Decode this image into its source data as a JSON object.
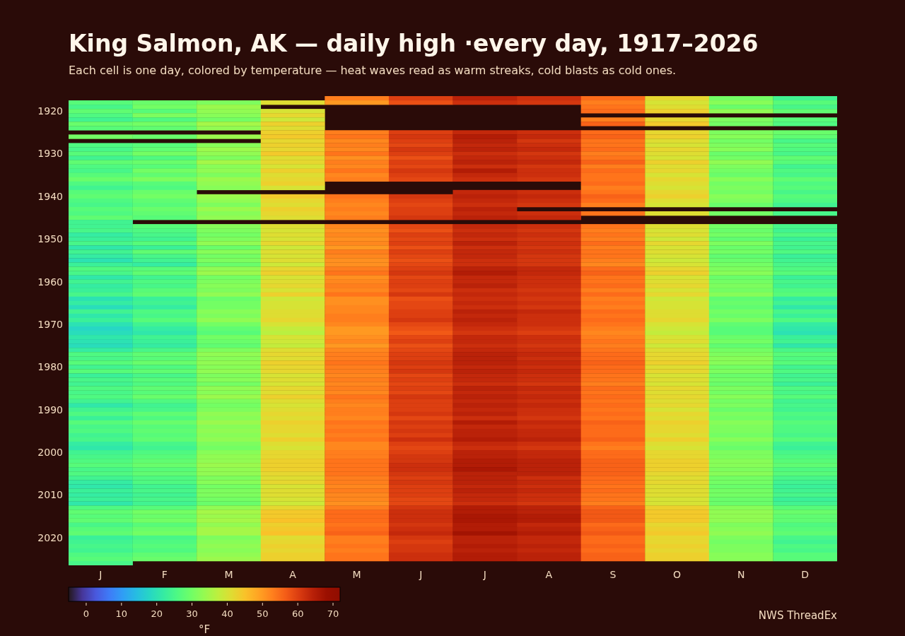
{
  "chart_data": {
    "type": "heatmap",
    "title": "King Salmon, AK — daily high ·every day, 1917–2026",
    "subtitle": "Each cell is one day, colored by temperature — heat waves read as warm streaks, cold blasts as cold ones.",
    "categories": [
      "J",
      "F",
      "M",
      "A",
      "M",
      "J",
      "J",
      "A",
      "S",
      "O",
      "N",
      "D"
    ],
    "y_categories": [
      null,
      null,
      null,
      "1920",
      null,
      null,
      null,
      null,
      null,
      null,
      null,
      null,
      null,
      "1930",
      null,
      null,
      null,
      null,
      null,
      null,
      null,
      null,
      null,
      "1940",
      null,
      null,
      null,
      null,
      null,
      null,
      null,
      null,
      null,
      "1950",
      null,
      null,
      null,
      null,
      null,
      null,
      null,
      null,
      null,
      "1960",
      null,
      null,
      null,
      null,
      null,
      null,
      null,
      null,
      null,
      "1970",
      null,
      null,
      null,
      null,
      null,
      null,
      null,
      null,
      null,
      "1980",
      null,
      null,
      null,
      null,
      null,
      null,
      null,
      null,
      null,
      "1990",
      null,
      null,
      null,
      null,
      null,
      null,
      null,
      null,
      null,
      "2000",
      null,
      null,
      null,
      null,
      null,
      null,
      null,
      null,
      null,
      "2010",
      null,
      null,
      null,
      null,
      null,
      null,
      null,
      null,
      null,
      "2020",
      null,
      null,
      null,
      null,
      null,
      null
    ],
    "cells": [
      [
        null,
        null,
        null,
        null,
        53,
        60,
        64,
        62,
        55,
        42,
        30,
        24
      ],
      [
        27,
        29,
        31,
        41,
        50,
        58,
        62,
        61,
        53,
        40,
        32,
        27
      ],
      [
        25,
        30,
        34,
        null,
        null,
        null,
        null,
        null,
        54,
        41,
        29,
        25
      ],
      [
        28,
        27,
        33,
        40,
        null,
        null,
        null,
        null,
        55,
        43,
        33,
        28
      ],
      [
        26,
        31,
        32,
        42,
        null,
        null,
        null,
        null,
        null,
        null,
        null,
        null
      ],
      [
        24,
        26,
        30,
        39,
        null,
        null,
        null,
        null,
        53,
        42,
        31,
        27
      ],
      [
        29,
        30,
        35,
        43,
        null,
        null,
        null,
        null,
        56,
        44,
        30,
        26
      ],
      [
        27,
        28,
        33,
        41,
        null,
        null,
        null,
        null,
        null,
        null,
        null,
        null
      ],
      [
        null,
        null,
        null,
        43,
        53,
        60,
        63,
        62,
        55,
        42,
        31,
        29
      ],
      [
        30,
        29,
        34,
        44,
        54,
        61,
        65,
        63,
        56,
        43,
        32,
        28
      ],
      [
        null,
        null,
        null,
        42,
        52,
        60,
        64,
        61,
        54,
        41,
        30,
        25
      ],
      [
        26,
        27,
        32,
        43,
        53,
        59,
        63,
        62,
        54,
        40,
        31,
        27
      ],
      [
        25,
        28,
        34,
        42,
        52,
        61,
        64,
        63,
        55,
        42,
        32,
        26
      ],
      [
        27,
        30,
        33,
        44,
        54,
        60,
        62,
        61,
        53,
        41,
        29,
        25
      ],
      [
        24,
        26,
        31,
        41,
        51,
        58,
        63,
        62,
        54,
        40,
        30,
        28
      ],
      [
        28,
        29,
        35,
        42,
        53,
        60,
        64,
        63,
        56,
        43,
        33,
        27
      ],
      [
        26,
        27,
        32,
        40,
        52,
        59,
        62,
        61,
        53,
        41,
        31,
        24
      ],
      [
        25,
        30,
        33,
        43,
        54,
        61,
        65,
        62,
        55,
        42,
        30,
        26
      ],
      [
        27,
        28,
        31,
        41,
        52,
        60,
        63,
        62,
        54,
        40,
        29,
        25
      ],
      [
        29,
        31,
        34,
        42,
        53,
        59,
        62,
        61,
        54,
        42,
        32,
        28
      ],
      [
        26,
        27,
        33,
        43,
        null,
        null,
        null,
        null,
        55,
        41,
        30,
        26
      ],
      [
        24,
        26,
        32,
        40,
        null,
        null,
        null,
        null,
        53,
        40,
        31,
        27
      ],
      [
        27,
        29,
        null,
        null,
        null,
        null,
        63,
        62,
        54,
        42,
        30,
        25
      ],
      [
        28,
        30,
        34,
        44,
        54,
        61,
        64,
        63,
        56,
        43,
        32,
        27
      ],
      [
        26,
        28,
        33,
        42,
        53,
        60,
        63,
        62,
        55,
        41,
        31,
        26
      ],
      [
        25,
        27,
        31,
        41,
        52,
        59,
        62,
        61,
        53,
        40,
        29,
        24
      ],
      [
        27,
        29,
        34,
        43,
        53,
        60,
        64,
        null,
        null,
        null,
        null,
        null
      ],
      [
        26,
        28,
        32,
        42,
        52,
        60,
        63,
        62,
        54,
        41,
        30,
        25
      ],
      [
        28,
        27,
        33,
        41,
        53,
        61,
        64,
        63,
        null,
        null,
        null,
        null
      ],
      [
        24,
        null,
        null,
        null,
        null,
        null,
        null,
        null,
        null,
        null,
        null,
        null
      ],
      [
        24,
        27,
        32,
        41,
        52,
        59,
        63,
        62,
        54,
        41,
        30,
        25
      ],
      [
        25,
        26,
        31,
        40,
        51,
        58,
        62,
        61,
        53,
        40,
        29,
        24
      ],
      [
        22,
        25,
        30,
        41,
        52,
        60,
        63,
        62,
        54,
        41,
        30,
        26
      ],
      [
        23,
        24,
        31,
        40,
        51,
        59,
        62,
        61,
        53,
        39,
        28,
        23
      ],
      [
        25,
        27,
        33,
        42,
        52,
        60,
        64,
        62,
        55,
        42,
        31,
        25
      ],
      [
        21,
        23,
        29,
        39,
        50,
        58,
        62,
        61,
        53,
        40,
        29,
        24
      ],
      [
        24,
        28,
        32,
        41,
        53,
        60,
        63,
        62,
        54,
        41,
        30,
        26
      ],
      [
        22,
        25,
        30,
        40,
        52,
        59,
        63,
        61,
        54,
        40,
        28,
        23
      ],
      [
        20,
        24,
        31,
        41,
        51,
        58,
        62,
        61,
        53,
        39,
        29,
        24
      ],
      [
        23,
        22,
        29,
        39,
        51,
        59,
        62,
        61,
        52,
        40,
        30,
        25
      ],
      [
        26,
        27,
        33,
        42,
        53,
        60,
        64,
        63,
        55,
        42,
        31,
        26
      ],
      [
        25,
        28,
        34,
        43,
        54,
        61,
        65,
        63,
        56,
        43,
        32,
        27
      ],
      [
        21,
        24,
        30,
        40,
        51,
        59,
        63,
        62,
        54,
        40,
        29,
        23
      ],
      [
        24,
        26,
        31,
        41,
        52,
        60,
        63,
        62,
        54,
        41,
        30,
        25
      ],
      [
        22,
        25,
        32,
        42,
        53,
        60,
        64,
        62,
        55,
        42,
        31,
        24
      ],
      [
        23,
        27,
        31,
        40,
        52,
        59,
        62,
        61,
        53,
        40,
        30,
        26
      ],
      [
        25,
        28,
        33,
        43,
        54,
        61,
        63,
        62,
        55,
        42,
        32,
        27
      ],
      [
        20,
        23,
        29,
        39,
        51,
        58,
        62,
        61,
        53,
        39,
        28,
        22
      ],
      [
        22,
        24,
        30,
        40,
        51,
        59,
        63,
        62,
        54,
        40,
        29,
        24
      ],
      [
        19,
        22,
        30,
        40,
        52,
        59,
        62,
        61,
        53,
        40,
        28,
        21
      ],
      [
        24,
        26,
        32,
        41,
        52,
        60,
        64,
        63,
        55,
        41,
        30,
        25
      ],
      [
        21,
        25,
        31,
        41,
        53,
        60,
        63,
        62,
        54,
        41,
        29,
        23
      ],
      [
        23,
        27,
        33,
        42,
        53,
        61,
        64,
        62,
        55,
        42,
        31,
        26
      ],
      [
        20,
        24,
        30,
        40,
        52,
        59,
        63,
        62,
        54,
        40,
        28,
        22
      ],
      [
        18,
        22,
        28,
        38,
        50,
        58,
        62,
        61,
        53,
        39,
        27,
        21
      ],
      [
        19,
        21,
        27,
        37,
        50,
        57,
        61,
        60,
        52,
        38,
        27,
        20
      ],
      [
        21,
        24,
        30,
        40,
        51,
        59,
        63,
        62,
        53,
        40,
        29,
        23
      ],
      [
        20,
        23,
        29,
        39,
        52,
        60,
        63,
        62,
        54,
        41,
        30,
        24
      ],
      [
        19,
        22,
        28,
        38,
        50,
        58,
        62,
        61,
        53,
        39,
        28,
        21
      ],
      [
        22,
        25,
        31,
        41,
        52,
        59,
        63,
        62,
        54,
        41,
        30,
        25
      ],
      [
        26,
        28,
        33,
        42,
        53,
        60,
        64,
        63,
        55,
        42,
        31,
        27
      ],
      [
        25,
        27,
        32,
        41,
        53,
        60,
        64,
        62,
        55,
        42,
        32,
        26
      ],
      [
        27,
        29,
        33,
        43,
        54,
        61,
        64,
        63,
        56,
        43,
        32,
        27
      ],
      [
        24,
        26,
        32,
        42,
        53,
        60,
        63,
        62,
        55,
        41,
        30,
        24
      ],
      [
        27,
        28,
        33,
        42,
        53,
        61,
        64,
        63,
        55,
        42,
        31,
        26
      ],
      [
        23,
        25,
        31,
        40,
        52,
        59,
        63,
        62,
        54,
        40,
        29,
        24
      ],
      [
        25,
        27,
        32,
        41,
        53,
        60,
        63,
        62,
        54,
        41,
        30,
        25
      ],
      [
        24,
        26,
        30,
        40,
        52,
        59,
        62,
        61,
        53,
        40,
        29,
        23
      ],
      [
        26,
        28,
        33,
        42,
        53,
        60,
        64,
        63,
        55,
        42,
        31,
        26
      ],
      [
        25,
        27,
        32,
        41,
        52,
        59,
        63,
        62,
        54,
        41,
        30,
        25
      ],
      [
        26,
        29,
        34,
        43,
        54,
        61,
        64,
        63,
        55,
        42,
        32,
        27
      ],
      [
        24,
        26,
        31,
        41,
        53,
        60,
        63,
        62,
        54,
        41,
        30,
        24
      ],
      [
        21,
        24,
        30,
        40,
        52,
        60,
        64,
        63,
        55,
        42,
        31,
        25
      ],
      [
        24,
        25,
        31,
        41,
        53,
        60,
        63,
        62,
        54,
        40,
        29,
        24
      ],
      [
        26,
        28,
        33,
        42,
        53,
        61,
        64,
        62,
        55,
        42,
        31,
        26
      ],
      [
        23,
        26,
        32,
        41,
        52,
        59,
        62,
        61,
        54,
        41,
        30,
        25
      ],
      [
        27,
        29,
        34,
        43,
        54,
        61,
        65,
        63,
        56,
        43,
        32,
        27
      ],
      [
        25,
        27,
        32,
        42,
        53,
        60,
        63,
        62,
        55,
        42,
        31,
        26
      ],
      [
        26,
        28,
        33,
        42,
        54,
        61,
        64,
        63,
        55,
        42,
        31,
        26
      ],
      [
        24,
        27,
        32,
        41,
        53,
        60,
        64,
        63,
        55,
        41,
        30,
        25
      ],
      [
        25,
        28,
        33,
        43,
        54,
        62,
        65,
        64,
        56,
        43,
        32,
        27
      ],
      [
        22,
        25,
        31,
        41,
        52,
        60,
        63,
        62,
        54,
        41,
        30,
        24
      ],
      [
        21,
        24,
        30,
        40,
        52,
        59,
        62,
        61,
        53,
        40,
        29,
        23
      ],
      [
        24,
        26,
        32,
        42,
        53,
        60,
        64,
        63,
        55,
        42,
        31,
        25
      ],
      [
        25,
        27,
        33,
        42,
        53,
        61,
        64,
        63,
        55,
        42,
        31,
        26
      ],
      [
        26,
        28,
        33,
        43,
        54,
        61,
        65,
        64,
        56,
        43,
        32,
        27
      ],
      [
        27,
        29,
        34,
        43,
        54,
        62,
        65,
        64,
        56,
        43,
        32,
        28
      ],
      [
        25,
        27,
        33,
        43,
        54,
        62,
        66,
        64,
        56,
        43,
        31,
        26
      ],
      [
        26,
        28,
        33,
        42,
        54,
        61,
        64,
        64,
        56,
        42,
        32,
        27
      ],
      [
        24,
        26,
        31,
        41,
        53,
        60,
        64,
        62,
        55,
        41,
        30,
        25
      ],
      [
        22,
        26,
        32,
        42,
        53,
        61,
        64,
        63,
        55,
        42,
        30,
        24
      ],
      [
        21,
        24,
        30,
        40,
        52,
        60,
        63,
        62,
        54,
        41,
        29,
        23
      ],
      [
        23,
        25,
        31,
        41,
        53,
        60,
        64,
        63,
        55,
        41,
        30,
        24
      ],
      [
        22,
        24,
        31,
        41,
        52,
        60,
        63,
        62,
        54,
        41,
        30,
        25
      ],
      [
        23,
        25,
        30,
        40,
        52,
        59,
        63,
        62,
        54,
        40,
        29,
        23
      ],
      [
        21,
        24,
        29,
        39,
        51,
        59,
        62,
        61,
        53,
        40,
        29,
        24
      ],
      [
        26,
        27,
        33,
        42,
        53,
        61,
        65,
        64,
        56,
        43,
        32,
        27
      ],
      [
        28,
        30,
        35,
        44,
        55,
        62,
        65,
        64,
        57,
        44,
        33,
        29
      ],
      [
        27,
        29,
        34,
        44,
        55,
        62,
        66,
        65,
        57,
        44,
        33,
        28
      ],
      [
        28,
        30,
        35,
        45,
        55,
        62,
        66,
        65,
        57,
        44,
        33,
        28
      ],
      [
        25,
        27,
        33,
        43,
        54,
        61,
        65,
        63,
        55,
        42,
        31,
        26
      ],
      [
        27,
        29,
        35,
        44,
        55,
        62,
        65,
        64,
        56,
        43,
        32,
        27
      ],
      [
        28,
        30,
        35,
        45,
        56,
        63,
        67,
        65,
        57,
        44,
        33,
        28
      ],
      [
        23,
        25,
        31,
        41,
        53,
        61,
        64,
        63,
        55,
        42,
        31,
        25
      ],
      [
        24,
        26,
        32,
        42,
        53,
        60,
        64,
        63,
        55,
        42,
        30,
        24
      ],
      [
        25,
        27,
        33,
        43,
        54,
        61,
        65,
        64,
        56,
        43,
        31,
        26
      ],
      [
        24,
        26,
        32,
        42,
        53,
        61,
        64,
        63,
        55,
        42,
        31,
        25
      ],
      [
        26,
        28,
        33,
        43,
        54,
        62,
        65,
        64,
        56,
        43,
        32,
        27
      ],
      [
        27,
        29,
        34,
        43,
        54,
        62,
        65,
        64,
        56,
        43,
        32,
        27
      ],
      [
        25,
        null,
        null,
        null,
        null,
        null,
        null,
        null,
        null,
        null,
        null,
        null
      ]
    ],
    "clim": [
      -5,
      72
    ],
    "cticks": [
      0,
      10,
      20,
      30,
      40,
      50,
      60,
      70
    ],
    "clabel": "°F",
    "annotations": [
      "NWS ThreadEx"
    ]
  }
}
